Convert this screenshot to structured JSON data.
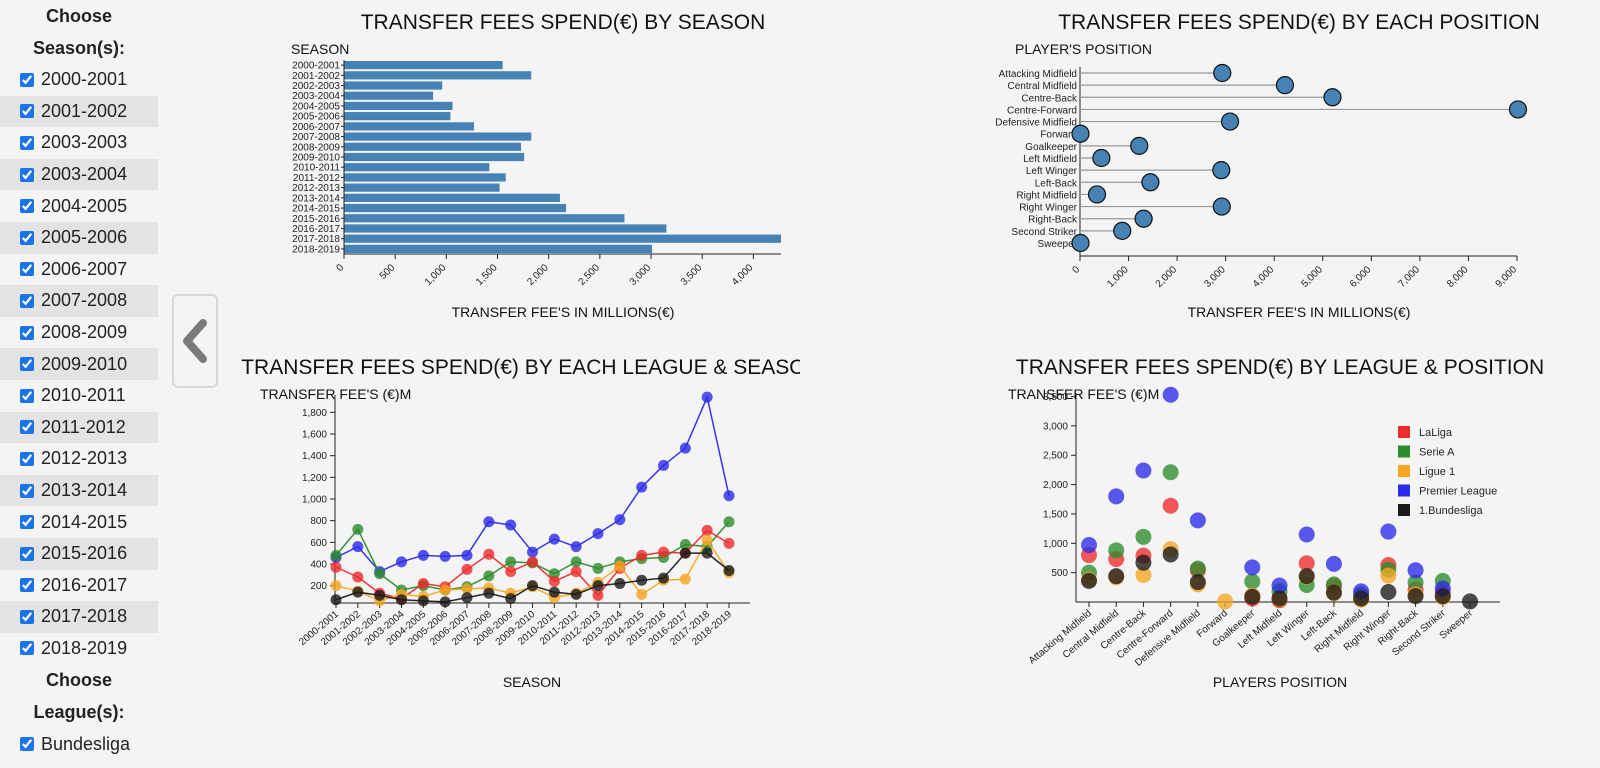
{
  "sidebar": {
    "season_heading_line1": "Choose",
    "season_heading_line2": "Season(s):",
    "seasons": [
      "2000-2001",
      "2001-2002",
      "2003-2003",
      "2003-2004",
      "2004-2005",
      "2005-2006",
      "2006-2007",
      "2007-2008",
      "2008-2009",
      "2009-2010",
      "2010-2011",
      "2011-2012",
      "2012-2013",
      "2013-2014",
      "2014-2015",
      "2015-2016",
      "2016-2017",
      "2017-2018",
      "2018-2019"
    ],
    "league_heading_line1": "Choose",
    "league_heading_line2": "League(s):",
    "leagues": [
      "Bundesliga"
    ]
  },
  "collapse_button": {
    "icon": "chevron-left-icon",
    "color": "#7a7a7a"
  },
  "colors": {
    "bar": "#4682b4",
    "lollipop": "#4682b4"
  },
  "chart_data": [
    {
      "type": "bar",
      "orientation": "horizontal",
      "title": "TRANSFER FEES SPEND(€) BY SEASON",
      "ylabel": "SEASON",
      "xlabel": "TRANSFER FEE'S IN MILLIONS(€)",
      "categories": [
        "2000-2001",
        "2001-2002",
        "2002-2003",
        "2003-2004",
        "2004-2005",
        "2005-2006",
        "2006-2007",
        "2007-2008",
        "2008-2009",
        "2009-2010",
        "2010-2011",
        "2011-2012",
        "2012-2013",
        "2013-2014",
        "2014-2015",
        "2015-2016",
        "2016-2017",
        "2017-2018",
        "2018-2019"
      ],
      "values": [
        1550,
        1830,
        960,
        870,
        1060,
        1040,
        1270,
        1830,
        1730,
        1760,
        1420,
        1580,
        1520,
        2110,
        2170,
        2740,
        3150,
        4270,
        3010
      ],
      "xlim": [
        0,
        4270
      ],
      "xticks": [
        "0",
        "500",
        "1,000",
        "1,500",
        "2,000",
        "2,500",
        "3,000",
        "3,500",
        "4,000"
      ]
    },
    {
      "type": "scatter",
      "subtype": "lollipop",
      "title": "TRANSFER FEES SPEND(€) BY EACH POSITION",
      "ylabel": "PLAYER'S POSITION",
      "xlabel": "TRANSFER FEE'S IN MILLIONS(€)",
      "categories": [
        "Attacking Midfield",
        "Central Midfield",
        "Centre-Back",
        "Centre-Forward",
        "Defensive Midfield",
        "Forward",
        "Goalkeeper",
        "Left Midfield",
        "Left Winger",
        "Left-Back",
        "Right Midfield",
        "Right Winger",
        "Right-Back",
        "Second Striker",
        "Sweeper"
      ],
      "values": [
        2930,
        4220,
        5200,
        9020,
        3090,
        10,
        1220,
        440,
        2910,
        1450,
        350,
        2920,
        1310,
        870,
        10
      ],
      "xlim": [
        0,
        9000
      ],
      "xticks": [
        "0",
        "1,000",
        "2,000",
        "3,000",
        "4,000",
        "5,000",
        "6,000",
        "7,000",
        "8,000",
        "9,000"
      ]
    },
    {
      "type": "line",
      "title": "TRANSFER FEES SPEND(€) BY EACH LEAGUE & SEASON",
      "ylabel": "TRANSFER FEE'S (€)M",
      "xlabel": "SEASON",
      "categories": [
        "2000-2001",
        "2001-2002",
        "2002-2003",
        "2003-2004",
        "2004-2005",
        "2005-2006",
        "2006-2007",
        "2007-2008",
        "2008-2009",
        "2009-2010",
        "2010-2011",
        "2011-2012",
        "2012-2013",
        "2013-2014",
        "2014-2015",
        "2015-2016",
        "2016-2017",
        "2017-2018",
        "2018-2019"
      ],
      "ylim": [
        40,
        1960
      ],
      "yticks": [
        200,
        400,
        600,
        800,
        1000,
        1200,
        1400,
        1600,
        1800
      ],
      "ytick_labels": [
        "200",
        "400",
        "600",
        "800",
        "1,000",
        "1,200",
        "1,400",
        "1,600",
        "1,800"
      ],
      "series": [
        {
          "color": "#2a2ae8",
          "values": [
            460,
            560,
            330,
            420,
            480,
            470,
            480,
            790,
            760,
            510,
            630,
            560,
            680,
            810,
            1110,
            1310,
            1470,
            1940,
            1030
          ]
        },
        {
          "color": "#2c8c2c",
          "values": [
            480,
            720,
            310,
            160,
            200,
            160,
            190,
            290,
            420,
            410,
            310,
            420,
            360,
            420,
            450,
            460,
            580,
            560,
            790
          ]
        },
        {
          "color": "#ee2a2a",
          "values": [
            370,
            280,
            130,
            80,
            220,
            190,
            350,
            490,
            330,
            420,
            240,
            330,
            110,
            360,
            480,
            510,
            500,
            710,
            590
          ]
        },
        {
          "color": "#f5a623",
          "values": [
            200,
            150,
            60,
            120,
            100,
            160,
            170,
            180,
            130,
            190,
            90,
            130,
            230,
            380,
            120,
            250,
            260,
            620,
            320
          ]
        },
        {
          "color": "#1a1a1a",
          "values": [
            70,
            140,
            110,
            70,
            60,
            50,
            90,
            130,
            80,
            200,
            140,
            120,
            200,
            220,
            250,
            270,
            500,
            500,
            340
          ]
        }
      ]
    },
    {
      "type": "scatter",
      "title": "TRANSFER FEES SPEND(€) BY LEAGUE & POSITION",
      "ylabel": "TRANSFER FEE'S (€)M",
      "xlabel": "PLAYERS POSITION",
      "categories": [
        "Attacking Midfield",
        "Central Midfield",
        "Centre-Back",
        "Centre-Forward",
        "Defensive Midfield",
        "Forward",
        "Goalkeeper",
        "Left Midfield",
        "Left Winger",
        "Left-Back",
        "Right Midfield",
        "Right Winger",
        "Right-Back",
        "Second Striker",
        "Sweeper"
      ],
      "ylim": [
        0,
        3560
      ],
      "yticks": [
        500,
        1000,
        1500,
        2000,
        2500,
        3000,
        3500
      ],
      "ytick_labels": [
        "500",
        "1,000",
        "1,500",
        "2,000",
        "2,500",
        "3,000",
        "3,500"
      ],
      "legend_position": "top-right",
      "series": [
        {
          "name": "LaLiga",
          "color": "#ee2a2a",
          "values": [
            800,
            730,
            790,
            1640,
            540,
            null,
            60,
            30,
            660,
            270,
            100,
            630,
            210,
            160,
            null
          ]
        },
        {
          "name": "Serie A",
          "color": "#2c8c2c",
          "values": [
            500,
            880,
            1110,
            2210,
            570,
            null,
            350,
            180,
            290,
            300,
            130,
            550,
            330,
            360,
            null
          ]
        },
        {
          "name": "Ligue 1",
          "color": "#f5a623",
          "values": [
            380,
            420,
            460,
            900,
            300,
            10,
            110,
            50,
            430,
            150,
            40,
            450,
            130,
            80,
            null
          ]
        },
        {
          "name": "Premier League",
          "color": "#2a2ae8",
          "values": [
            970,
            1800,
            2240,
            3530,
            1390,
            null,
            590,
            280,
            1150,
            650,
            180,
            1200,
            540,
            230,
            null
          ]
        },
        {
          "name": "1.Bundesliga",
          "color": "#1a1a1a",
          "values": [
            360,
            440,
            670,
            810,
            340,
            null,
            90,
            60,
            440,
            160,
            60,
            170,
            100,
            100,
            10
          ]
        }
      ]
    }
  ]
}
